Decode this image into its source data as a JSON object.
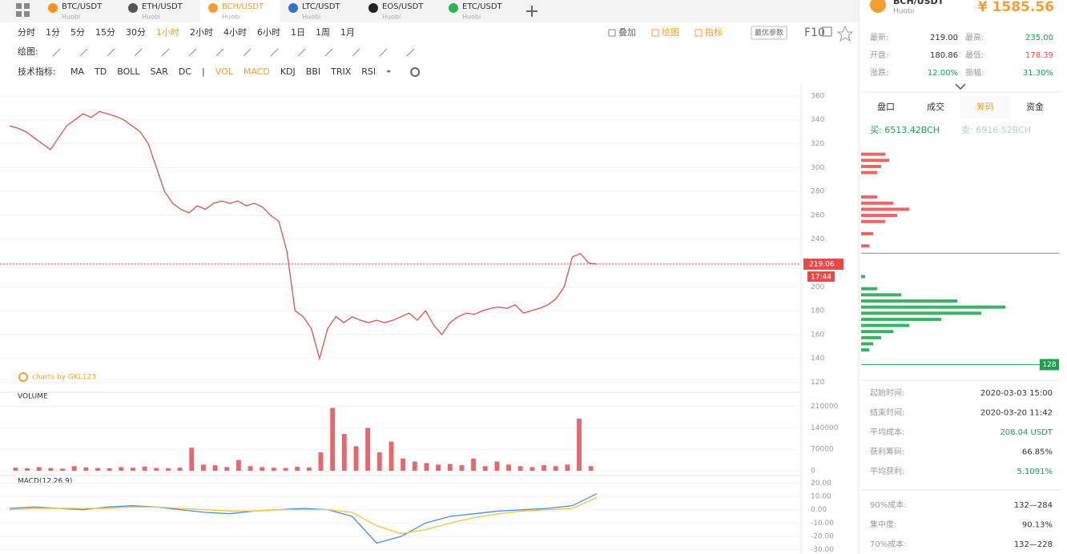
{
  "tabs": [
    {
      "pair": "BTC/USDT",
      "exchange": "Huobi",
      "color": "#f7931a"
    },
    {
      "pair": "ETH/USDT",
      "exchange": "Huobi",
      "color": "#555"
    },
    {
      "pair": "BCH/USDT",
      "exchange": "Huobi",
      "color": "#f0a030"
    },
    {
      "pair": "LTC/USDT",
      "exchange": "Huobi",
      "color": "#3b6ec8"
    },
    {
      "pair": "EOS/USDT",
      "exchange": "Huobi",
      "color": "#222"
    },
    {
      "pair": "ETC/USDT",
      "exchange": "Huobi",
      "color": "#2bb35b"
    }
  ],
  "active_tab": 2,
  "header": {
    "pair": "BCH/USDT",
    "exchange": "Huobi",
    "price": "¥ 1585.56"
  },
  "periods": [
    "分时",
    "1分",
    "5分",
    "15分",
    "30分",
    "1小时",
    "2小时",
    "4小时",
    "6小时",
    "1日",
    "1周",
    "1月"
  ],
  "active_period": 5,
  "toolbar_right": [
    "叠加",
    "绘图",
    "指标",
    "最优参数",
    "F10"
  ],
  "draw_label": "绘图:",
  "indicators_label": "技术指标:",
  "indicators": [
    "MA",
    "TD",
    "BOLL",
    "SAR",
    "DC",
    "|",
    "VOL",
    "MACD",
    "KDJ",
    "BBI",
    "TRIX",
    "RSI"
  ],
  "active_indicators": [
    "VOL",
    "MACD"
  ],
  "stats": [
    [
      {
        "label": "最新:",
        "value": "219.00",
        "color": "#333"
      },
      {
        "label": "最高:",
        "value": "235.00",
        "color": "#1aa34a"
      }
    ],
    [
      {
        "label": "开盘:",
        "value": "180.86",
        "color": "#333"
      },
      {
        "label": "最低:",
        "value": "178.39",
        "color": "#e84a4a"
      }
    ],
    [
      {
        "label": "涨跌:",
        "value": "12.00%",
        "color": "#1aa34a"
      },
      {
        "label": "振幅:",
        "value": "31.30%",
        "color": "#1aa34a"
      }
    ]
  ],
  "side_tabs": [
    "盘口",
    "成交",
    "筹码",
    "资金"
  ],
  "active_side_tab": 2,
  "chips_text": {
    "buy": "买: 6513.42BCH",
    "sell": "卖: 6916.52BCH"
  },
  "info": [
    {
      "label": "起始时间:",
      "value": "2020-03-03 15:00",
      "color": "#333"
    },
    {
      "label": "结束时间:",
      "value": "2020-03-20 11:42",
      "color": "#333"
    },
    {
      "label": "平均成本:",
      "value": "208.04 USDT",
      "color": "#1aa34a"
    },
    {
      "label": "获利筹码:",
      "value": "66.85%",
      "color": "#333"
    },
    {
      "label": "平均获利:",
      "value": "5.1091%",
      "color": "#1aa34a"
    },
    {
      "label": "90%成本:",
      "value": "132—284",
      "color": "#333"
    },
    {
      "label": "集中度:",
      "value": "90.13%",
      "color": "#333"
    },
    {
      "label": "70%成本:",
      "value": "132—228",
      "color": "#333"
    }
  ],
  "watermark": "charts by GKL123",
  "chart_data": [
    {
      "type": "line",
      "name": "price",
      "color": "#e0504f",
      "ylim": [
        115,
        370
      ],
      "yticks": [
        120,
        140,
        160,
        180,
        200,
        220,
        240,
        260,
        280,
        300,
        320,
        340,
        360
      ],
      "current_price": 219.06,
      "time_label": "17:44",
      "values": [
        335,
        333,
        330,
        325,
        320,
        315,
        325,
        335,
        340,
        345,
        342,
        347,
        345,
        343,
        340,
        335,
        330,
        320,
        300,
        280,
        270,
        265,
        262,
        268,
        265,
        270,
        272,
        270,
        272,
        268,
        270,
        267,
        260,
        255,
        230,
        180,
        175,
        165,
        140,
        165,
        175,
        170,
        175,
        172,
        170,
        172,
        170,
        172,
        175,
        178,
        172,
        180,
        168,
        160,
        170,
        175,
        178,
        177,
        180,
        182,
        183,
        182,
        185,
        178,
        180,
        182,
        185,
        190,
        200,
        225,
        228,
        220,
        219.06
      ]
    },
    {
      "type": "bar",
      "title": "VOLUME",
      "color": "#e8676b",
      "ylim": [
        0,
        230000
      ],
      "yticks": [
        0,
        70000,
        140000,
        210000
      ],
      "values": [
        10000,
        8000,
        12000,
        9000,
        7000,
        15000,
        11000,
        9000,
        8000,
        12000,
        10000,
        14000,
        9000,
        8000,
        10000,
        75000,
        20000,
        18000,
        12000,
        35000,
        15000,
        12000,
        10000,
        9000,
        13000,
        11000,
        60000,
        205000,
        120000,
        80000,
        140000,
        60000,
        95000,
        40000,
        30000,
        25000,
        20000,
        22000,
        18000,
        40000,
        15000,
        30000,
        20000,
        15000,
        12000,
        18000,
        15000,
        20000,
        170000,
        15000
      ]
    },
    {
      "type": "line",
      "title": "MACD(12,26,9)",
      "ylim": [
        -32,
        22
      ],
      "yticks": [
        {
          "value": 20,
          "label": "20.00"
        },
        {
          "value": 10,
          "label": "10.00"
        },
        {
          "value": 0,
          "label": "0.00"
        },
        {
          "value": -10,
          "label": "-10.00"
        },
        {
          "value": -20,
          "label": "-20.00"
        },
        {
          "value": -30,
          "label": "-30.00"
        }
      ],
      "series": [
        {
          "color": "#4a90e2",
          "values": [
            1,
            2,
            1,
            0,
            2,
            3,
            2,
            0,
            -2,
            -3,
            -1,
            0,
            1,
            0,
            -5,
            -25,
            -20,
            -10,
            -5,
            -3,
            -1,
            0,
            1,
            3,
            12
          ]
        },
        {
          "color": "#f5c342",
          "values": [
            0,
            1,
            1,
            1,
            1,
            2,
            2,
            1,
            0,
            -1,
            -1,
            0,
            0,
            0,
            -2,
            -12,
            -18,
            -15,
            -10,
            -6,
            -3,
            -1,
            0,
            1,
            9
          ]
        }
      ]
    },
    {
      "type": "hbar",
      "ylim": [
        125,
        305
      ],
      "low_price": 128,
      "series": [
        {
          "color": "#e84a4a",
          "levels": [
            300,
            295,
            290,
            285,
            265,
            260,
            255,
            250,
            245,
            235,
            225
          ],
          "values": [
            30,
            35,
            25,
            20,
            20,
            40,
            60,
            45,
            30,
            15,
            10
          ]
        },
        {
          "color": "#1aa34a",
          "levels": [
            200,
            190,
            185,
            180,
            175,
            170,
            165,
            160,
            155,
            150,
            145,
            140
          ],
          "values": [
            5,
            20,
            50,
            120,
            180,
            150,
            100,
            60,
            40,
            25,
            15,
            10
          ]
        }
      ]
    }
  ]
}
